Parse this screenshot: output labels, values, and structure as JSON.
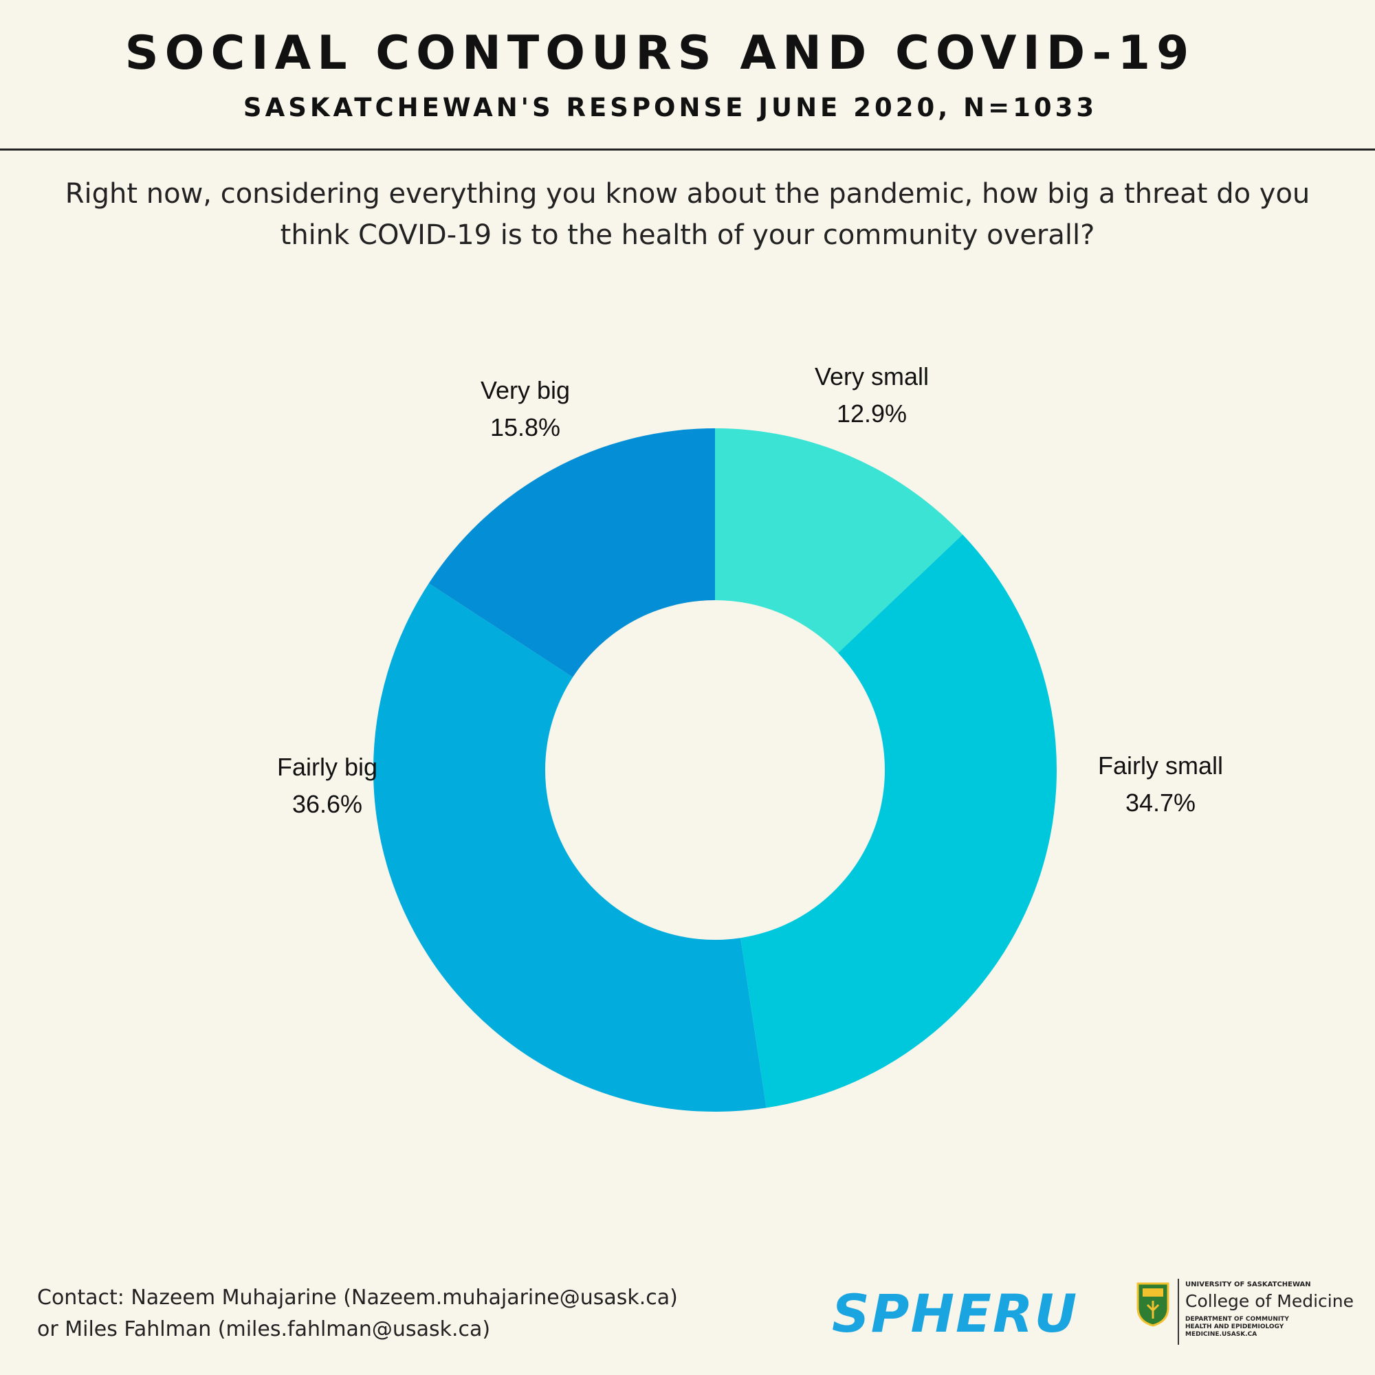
{
  "header": {
    "title": "SOCIAL CONTOURS AND COVID-19",
    "subtitle": "SASKATCHEWAN'S RESPONSE JUNE 2020, N=1033"
  },
  "question": {
    "line1": "Right now, considering everything you know about the pandemic, how big a threat do you",
    "line2": "think COVID-19 is to the health of your community overall?"
  },
  "chart_data": {
    "type": "pie",
    "donut": true,
    "title": "Right now, considering everything you know about the pandemic, how big a threat do you think COVID-19 is to the health of your community overall?",
    "categories": [
      "Very small",
      "Fairly small",
      "Fairly big",
      "Very big"
    ],
    "values": [
      12.9,
      34.7,
      36.6,
      15.8
    ],
    "value_labels": [
      "12.9%",
      "34.7%",
      "36.6%",
      "15.8%"
    ],
    "colors": [
      "#3ae3d3",
      "#00c8dc",
      "#02acdc",
      "#038ed5"
    ],
    "legend": "none"
  },
  "footer": {
    "contact_line1": "Contact: Nazeem Muhajarine (Nazeem.muhajarine@usask.ca)",
    "contact_line2": "or Miles Fahlman (miles.fahlman@usask.ca)",
    "spheru_logo": "SPHERU",
    "usask_university": "UNIVERSITY OF SASKATCHEWAN",
    "usask_college": "College of Medicine",
    "usask_dept_line1": "DEPARTMENT OF COMMUNITY",
    "usask_dept_line2": "HEALTH AND EPIDEMIOLOGY",
    "usask_url": "MEDICINE.USASK.CA"
  }
}
